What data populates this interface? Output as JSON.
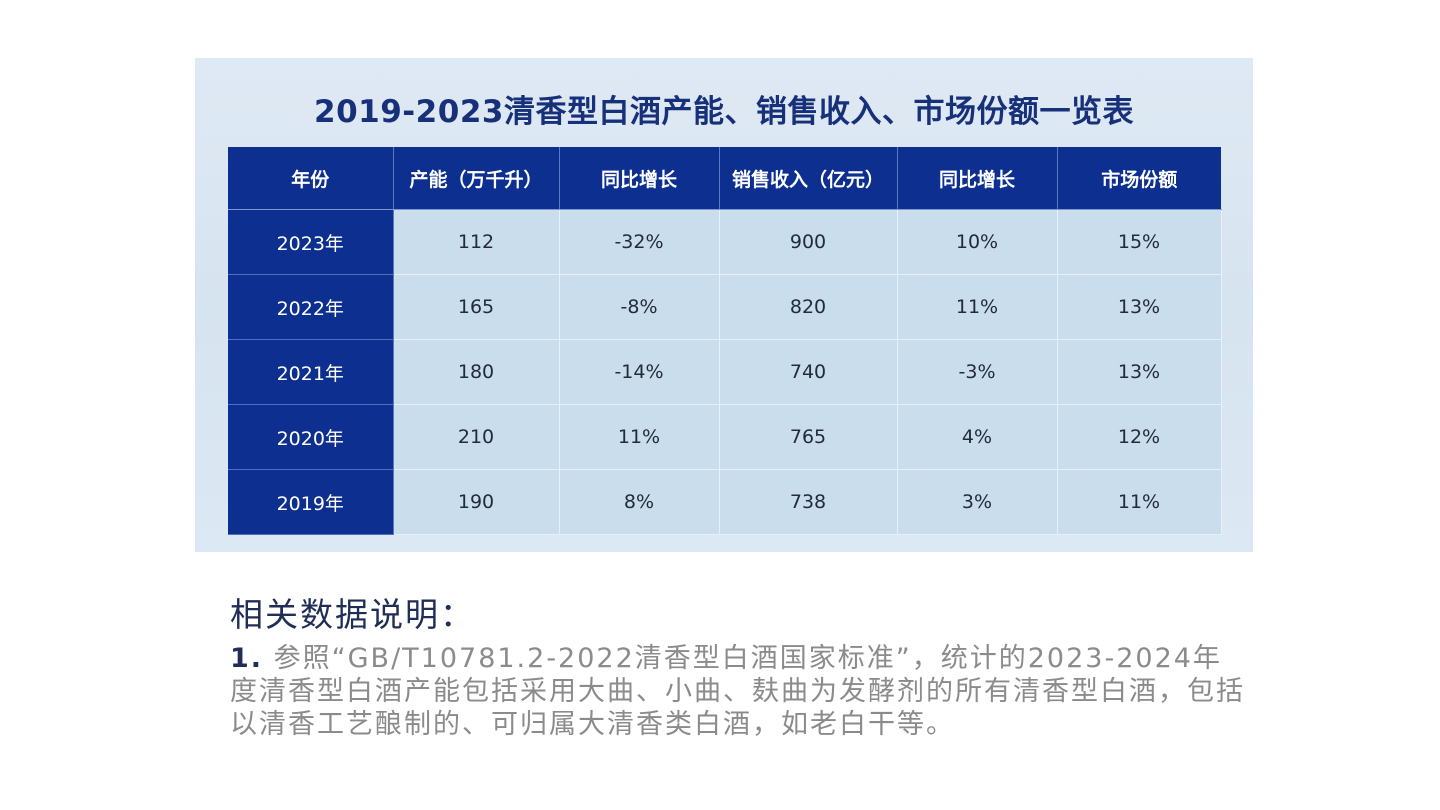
{
  "chart_data": {
    "type": "table",
    "title": "2019-2023清香型白酒产能、销售收入、市场份额一览表",
    "columns": [
      "年份",
      "产能（万千升）",
      "同比增长",
      "销售收入（亿元）",
      "同比增长",
      "市场份额"
    ],
    "rows": [
      [
        "2023年",
        "112",
        "-32%",
        "900",
        "10%",
        "15%"
      ],
      [
        "2022年",
        "165",
        "-8%",
        "820",
        "11%",
        "13%"
      ],
      [
        "2021年",
        "180",
        "-14%",
        "740",
        "-3%",
        "13%"
      ],
      [
        "2020年",
        "210",
        "11%",
        "765",
        "4%",
        "12%"
      ],
      [
        "2019年",
        "190",
        "8%",
        "738",
        "3%",
        "11%"
      ]
    ]
  },
  "notes": {
    "heading": "相关数据说明：",
    "item_number": "1.",
    "item_text": "参照“GB/T10781.2-2022清香型白酒国家标准”，统计的2023-2024年度清香型白酒产能包括采用大曲、小曲、麸曲为发酵剂的所有清香型白酒，包括以清香工艺酿制的、可归属大清香类白酒，如老白干等。"
  },
  "colors": {
    "header_bg": "#0d2f8f",
    "cell_bg": "#c9ddec",
    "title_color": "#17307a",
    "note_text": "#8b8b8b"
  }
}
